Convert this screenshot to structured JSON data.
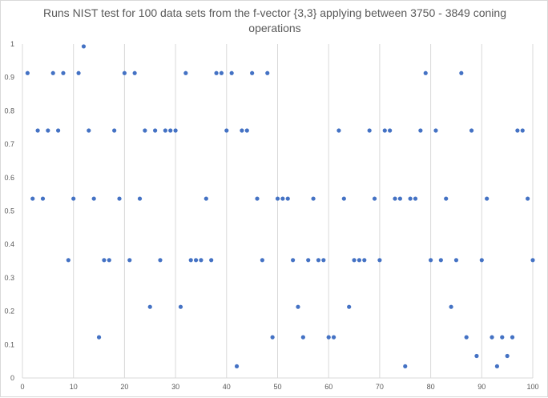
{
  "chart_data": {
    "type": "scatter",
    "title_lines": [
      "Runs NIST test for 100 data sets from the f-vector {3,3} applying between 3750 - 3849 coning",
      "operations"
    ],
    "xlabel": "",
    "ylabel": "",
    "xlim": [
      0,
      100
    ],
    "ylim": [
      0,
      1
    ],
    "x_ticks": [
      "0",
      "10",
      "20",
      "30",
      "40",
      "50",
      "60",
      "70",
      "80",
      "90",
      "100"
    ],
    "y_ticks": [
      "0",
      "0.1",
      "0.2",
      "0.3",
      "0.4",
      "0.5",
      "0.6",
      "0.7",
      "0.8",
      "0.9",
      "1"
    ],
    "grid": "vertical-major",
    "legend": "none",
    "marker_color": "#4472c4",
    "gridline_color": "#d9d9d9",
    "series": [
      {
        "x": [
          1,
          2,
          3,
          4,
          5,
          6,
          7,
          8,
          9,
          10,
          11,
          12,
          13,
          14,
          15,
          16,
          17,
          18,
          19,
          20,
          21,
          22,
          23,
          24,
          25,
          26,
          27,
          28,
          29,
          30,
          31,
          32,
          33,
          34,
          35,
          36,
          37,
          38,
          39,
          40,
          41,
          42,
          43,
          44,
          45,
          46,
          47,
          48,
          49,
          50,
          51,
          52,
          53,
          54,
          55,
          56,
          57,
          58,
          59,
          60,
          61,
          62,
          63,
          64,
          65,
          66,
          67,
          68,
          69,
          70,
          71,
          72,
          73,
          74,
          75,
          76,
          77,
          78,
          79,
          80,
          81,
          82,
          83,
          84,
          85,
          86,
          87,
          88,
          89,
          90,
          91,
          92,
          93,
          94,
          95,
          96,
          97,
          98,
          99,
          100
        ],
        "y": [
          0.913,
          0.537,
          0.741,
          0.537,
          0.741,
          0.913,
          0.741,
          0.913,
          0.353,
          0.537,
          0.913,
          0.993,
          0.741,
          0.537,
          0.122,
          0.353,
          0.353,
          0.741,
          0.537,
          0.913,
          0.353,
          0.913,
          0.537,
          0.741,
          0.213,
          0.741,
          0.353,
          0.741,
          0.741,
          0.741,
          0.213,
          0.913,
          0.353,
          0.353,
          0.353,
          0.537,
          0.353,
          0.913,
          0.913,
          0.741,
          0.913,
          0.035,
          0.741,
          0.741,
          0.913,
          0.537,
          0.353,
          0.913,
          0.122,
          0.537,
          0.537,
          0.537,
          0.353,
          0.213,
          0.122,
          0.353,
          0.537,
          0.353,
          0.353,
          0.122,
          0.122,
          0.741,
          0.537,
          0.213,
          0.353,
          0.353,
          0.353,
          0.741,
          0.537,
          0.353,
          0.741,
          0.741,
          0.537,
          0.537,
          0.035,
          0.537,
          0.537,
          0.741,
          0.913,
          0.353,
          0.741,
          0.353,
          0.537,
          0.213,
          0.353,
          0.913,
          0.122,
          0.741,
          0.066,
          0.353,
          0.537,
          0.122,
          0.035,
          0.122,
          0.066,
          0.122,
          0.741,
          0.741,
          0.537,
          0.353
        ]
      }
    ]
  }
}
